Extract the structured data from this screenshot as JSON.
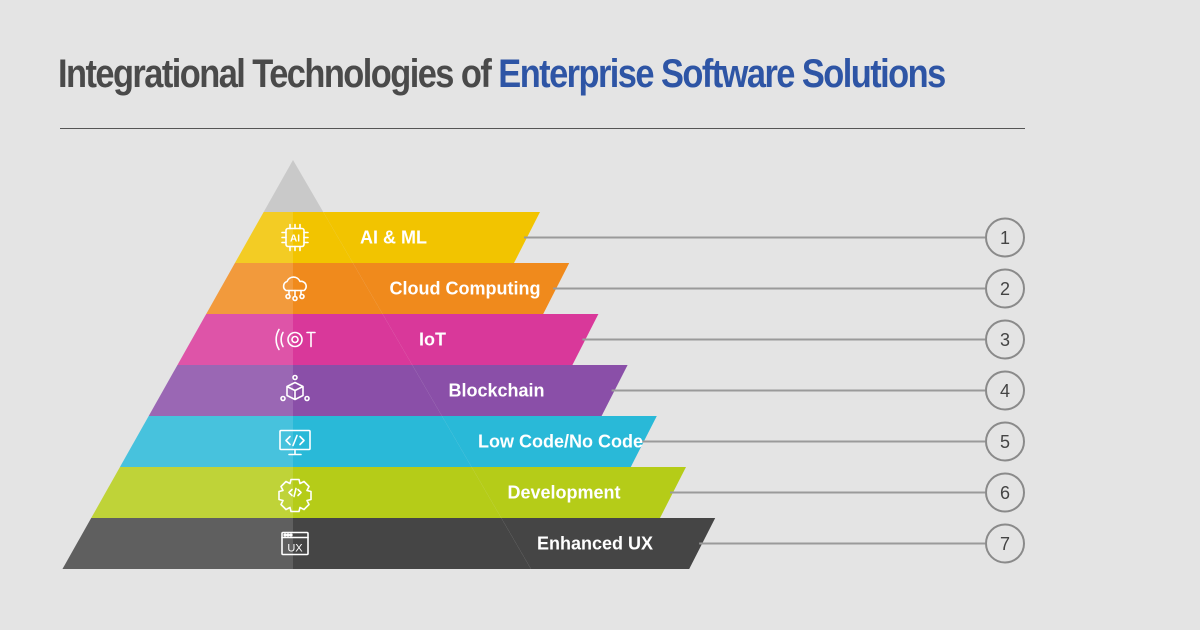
{
  "title": {
    "prefix": "Integrational Technologies of",
    "highlight": "Enterprise Software Solutions"
  },
  "colors": {
    "title_dark": "#4a4a4a",
    "title_accent": "#2e55a5",
    "background": "#e4e4e4"
  },
  "tiers": [
    {
      "label": "AI & ML",
      "number": "1",
      "color": "#f2c400",
      "icon": "ai-chip-icon"
    },
    {
      "label": "Cloud Computing",
      "number": "2",
      "color": "#f08a1c",
      "icon": "cloud-network-icon"
    },
    {
      "label": "IoT",
      "number": "3",
      "color": "#d9389a",
      "icon": "iot-signal-icon"
    },
    {
      "label": "Blockchain",
      "number": "4",
      "color": "#8a4fa8",
      "icon": "blockchain-cube-icon"
    },
    {
      "label": "Low Code/No Code",
      "number": "5",
      "color": "#29b9d8",
      "icon": "code-monitor-icon"
    },
    {
      "label": "Development",
      "number": "6",
      "color": "#b5cc18",
      "icon": "code-gear-icon"
    },
    {
      "label": "Enhanced UX",
      "number": "7",
      "color": "#454545",
      "icon": "ux-window-icon"
    }
  ]
}
